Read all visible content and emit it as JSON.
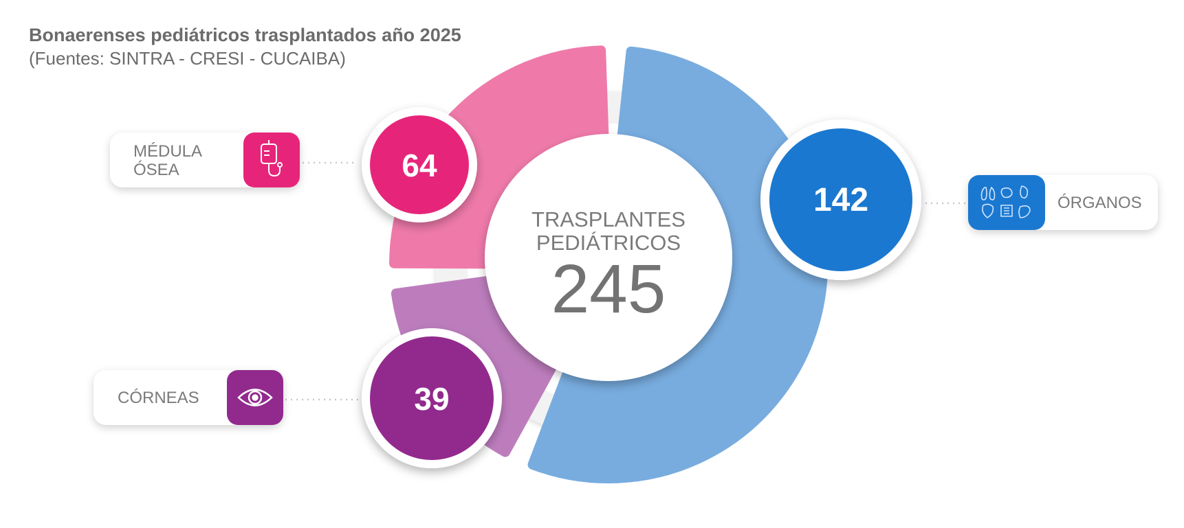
{
  "title": "Bonaerenses pediátricos trasplantados año 2025",
  "subtitle": "(Fuentes: SINTRA - CRESI - CUCAIBA)",
  "center": {
    "line1": "TRASPLANTES",
    "line2": "PEDIÁTRICOS",
    "total": "245"
  },
  "chart_data": {
    "type": "pie",
    "title": "Bonaerenses pediátricos trasplantados año 2025",
    "total": 245,
    "categories": [
      "ÓRGANOS",
      "CÓRNEAS",
      "MÉDULA ÓSEA"
    ],
    "values": [
      142,
      39,
      64
    ],
    "series": [
      {
        "name": "ÓRGANOS",
        "value": 142,
        "label": "142",
        "ring_color": "#78acdf",
        "circle_color": "#1b78d0",
        "icon": "organs-icon"
      },
      {
        "name": "CÓRNEAS",
        "value": 39,
        "label": "39",
        "ring_color": "#bd7dbd",
        "circle_color": "#922a8e",
        "icon": "eye-icon"
      },
      {
        "name": "MÉDULA ÓSEA",
        "value": 64,
        "label": "64",
        "ring_color": "#ef7aaa",
        "circle_color": "#e6257a",
        "icon": "iv-bag-icon"
      }
    ]
  },
  "cards": {
    "medula": {
      "line1": "MÉDULA",
      "line2": "ÓSEA"
    },
    "corneas": {
      "label": "CÓRNEAS"
    },
    "organos": {
      "label": "ÓRGANOS"
    }
  }
}
